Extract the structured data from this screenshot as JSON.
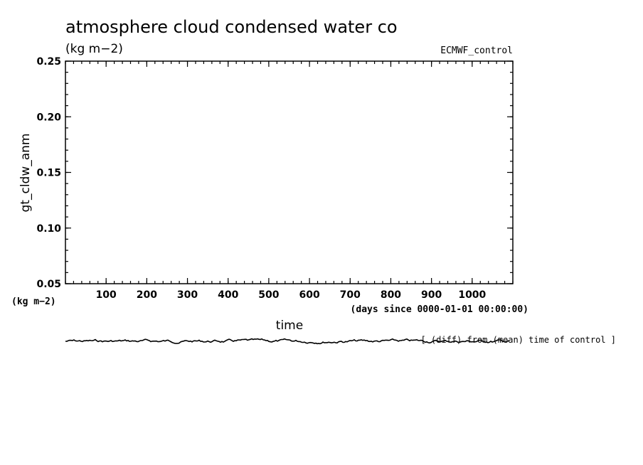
{
  "chart_data": {
    "type": "line",
    "title": "atmosphere cloud condensed water co",
    "subtitle": "(kg m−2)",
    "dataset_label": "ECMWF_control",
    "ylabel": "gt_cldw_anm",
    "yunit": "(kg m−2)",
    "xlabel": "time",
    "xunit": "(days since 0000-01-01 00:00:00)",
    "xlim": [
      0,
      1100
    ],
    "ylim": [
      0.05,
      0.25
    ],
    "x_ticks": [
      100,
      200,
      300,
      400,
      500,
      600,
      700,
      800,
      900,
      1000
    ],
    "y_ticks": [
      "0.05",
      "0.10",
      "0.15",
      "0.20",
      "0.25"
    ],
    "grid": false,
    "series": [
      {
        "values": []
      }
    ]
  },
  "note_text": "[ (diff) from (mean) time of control ]"
}
